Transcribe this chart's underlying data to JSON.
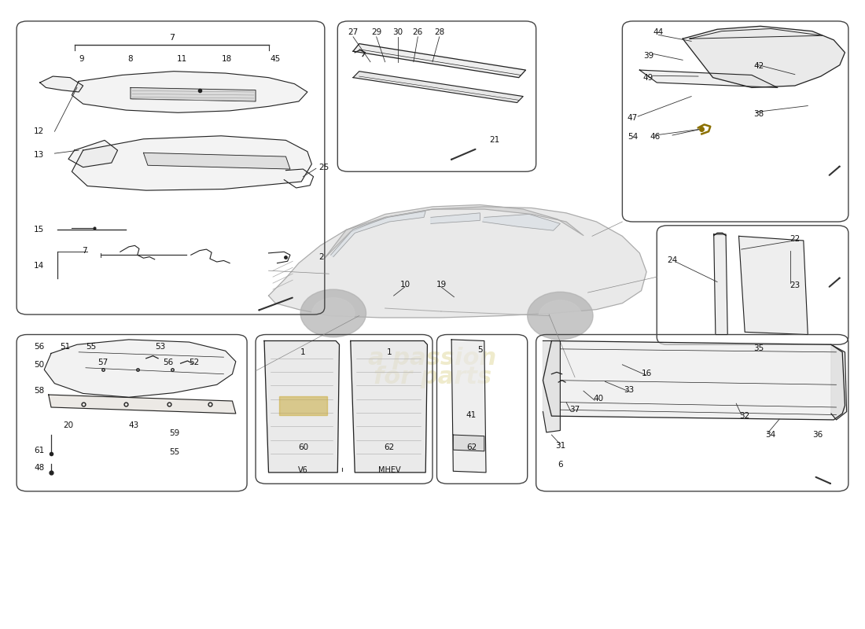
{
  "bg_color": "#ffffff",
  "box_edge_color": "#444444",
  "line_color": "#333333",
  "part_line_color": "#222222",
  "watermark_color": "#c8b84a",
  "watermark_alpha": 0.28,
  "boxes": {
    "tl": [
      0.018,
      0.5,
      0.375,
      0.968
    ],
    "tc": [
      0.39,
      0.728,
      0.62,
      0.968
    ],
    "tr": [
      0.72,
      0.648,
      0.982,
      0.968
    ],
    "mr": [
      0.76,
      0.452,
      0.982,
      0.642
    ],
    "bl": [
      0.018,
      0.218,
      0.285,
      0.468
    ],
    "bml": [
      0.295,
      0.23,
      0.5,
      0.468
    ],
    "bms": [
      0.505,
      0.23,
      0.61,
      0.468
    ],
    "br": [
      0.62,
      0.218,
      0.982,
      0.468
    ]
  }
}
